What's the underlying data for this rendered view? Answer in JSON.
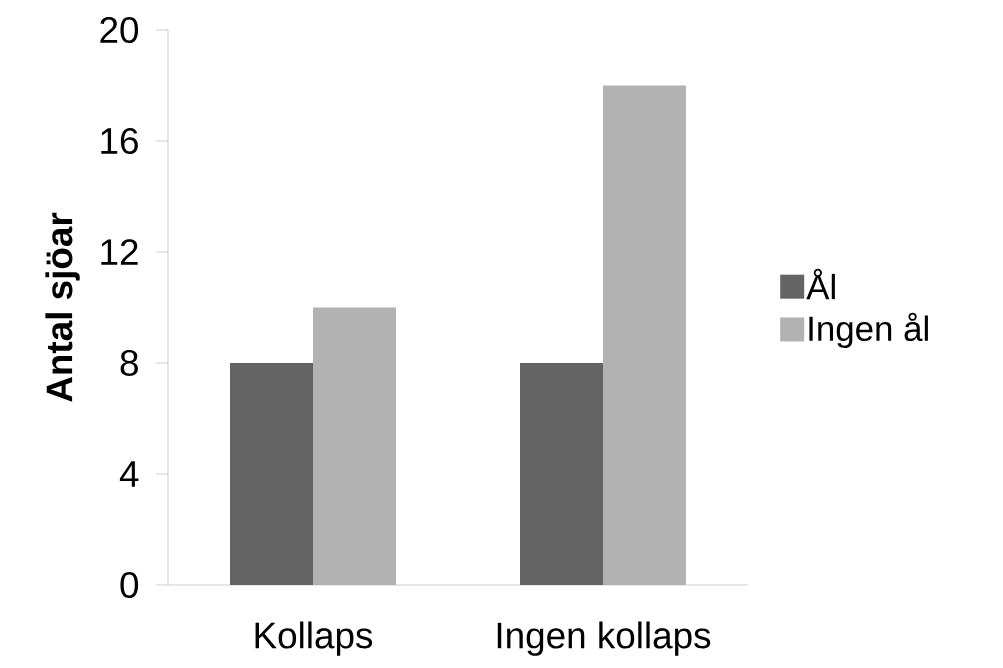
{
  "chart_data": {
    "type": "bar",
    "ylabel": "Antal sjöar",
    "categories": [
      "Kollaps",
      "Ingen kollaps"
    ],
    "series": [
      {
        "name": "Ål",
        "color": "#646464",
        "values": [
          8,
          8
        ]
      },
      {
        "name": "Ingen ål",
        "color": "#b2b2b2",
        "values": [
          10,
          18
        ]
      }
    ],
    "ylim": [
      0,
      20
    ],
    "yticks": [
      0,
      4,
      8,
      12,
      16,
      20
    ],
    "grid": false,
    "legend": "right"
  }
}
